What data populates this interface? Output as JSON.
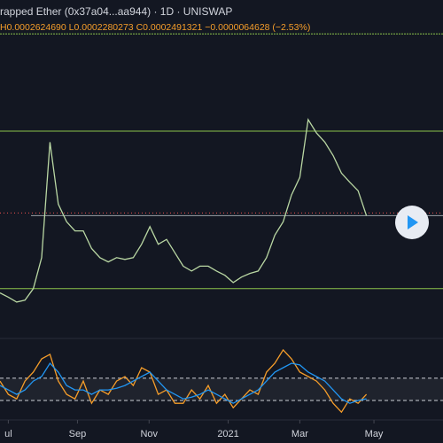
{
  "header": {
    "title": "rapped Ether (0x37a04...aa944) · 1D · UNISWAP",
    "ohlc": "H0.0002624690 L0.0002280273 C0.0002491321 −0.0000064628 (−2.53%)"
  },
  "chart_data": [
    {
      "type": "line",
      "color": "#b9d7a3",
      "values": [
        0.000122,
        0.000115,
        0.000107,
        0.00011,
        0.000129,
        0.00018,
        0.00037,
        0.000268,
        0.000239,
        0.000224,
        0.000224,
        0.000195,
        0.00018,
        0.000173,
        0.00018,
        0.000177,
        0.00018,
        0.000202,
        0.000231,
        0.000202,
        0.00021,
        0.000188,
        0.000166,
        0.000158,
        0.000166,
        0.000166,
        0.000158,
        0.000151,
        0.000139,
        0.000148,
        0.000154,
        0.000158,
        0.00018,
        0.000217,
        0.000239,
        0.000283,
        0.000312,
        0.000407,
        0.000385,
        0.00037,
        0.000348,
        0.000319,
        0.000304,
        0.00029,
        0.000249
      ],
      "xlim": [
        0,
        46
      ],
      "ylim": [
        5e-05,
        0.00056
      ],
      "levels": [
        0.000548,
        0.000388,
        0.000249,
        0.000129
      ],
      "level_color": "#8bc34a",
      "xticks": [
        {
          "value": 1,
          "label": "ul"
        },
        {
          "value": 9.3,
          "label": "Sep"
        },
        {
          "value": 17.9,
          "label": "Nov"
        },
        {
          "value": 27.4,
          "label": "2021"
        },
        {
          "value": 36,
          "label": "Mar"
        },
        {
          "value": 44.9,
          "label": "May"
        }
      ]
    },
    {
      "type": "line",
      "xlim": [
        0,
        46
      ],
      "ylim": [
        -5,
        140
      ],
      "hlines": [
        70,
        30
      ],
      "series": [
        {
          "color": "#f59d2a",
          "values": [
            65,
            41,
            33,
            65,
            81,
            105,
            113,
            65,
            41,
            33,
            65,
            25,
            49,
            41,
            65,
            73,
            57,
            89,
            81,
            41,
            49,
            25,
            25,
            49,
            33,
            57,
            25,
            41,
            17,
            33,
            49,
            41,
            81,
            97,
            121,
            105,
            81,
            73,
            65,
            49,
            25,
            9,
            33,
            25,
            41
          ]
        },
        {
          "color": "#2196f3",
          "values": [
            57,
            49,
            41,
            49,
            65,
            73,
            97,
            81,
            57,
            49,
            49,
            41,
            49,
            49,
            52,
            57,
            65,
            73,
            81,
            65,
            49,
            41,
            33,
            36,
            41,
            49,
            41,
            33,
            25,
            33,
            41,
            49,
            65,
            81,
            89,
            97,
            94,
            81,
            73,
            65,
            49,
            33,
            25,
            30,
            33
          ]
        }
      ]
    }
  ]
}
